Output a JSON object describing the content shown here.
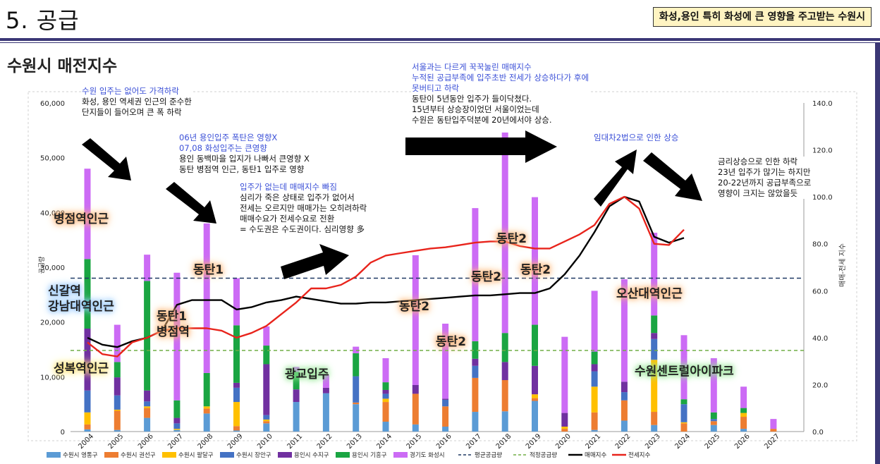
{
  "header": {
    "title": "5. 공급",
    "note": "화성,용인 특히 화성에 큰 영향을 주고받는 수원시"
  },
  "colors": {
    "accent": "#3b3776",
    "note_bg": "#fff4c2",
    "annotation_blue": "#3a4fd7",
    "series": [
      "#5b9bd5",
      "#ed7d31",
      "#ffc000",
      "#4472c4",
      "#7030a0",
      "#1aa542",
      "#cc6bf5"
    ],
    "avg_supply_line": "#1f3864",
    "proper_supply_line": "#70ad47",
    "sale_index_line": "#000000",
    "jeonse_index_line": "#e8241c"
  },
  "chart_data": {
    "type": "bar",
    "title": "수원시 매전지수",
    "stacked": true,
    "ylabel": "공급량",
    "y2label": "매매-전세 지수",
    "ylim": [
      0,
      60000
    ],
    "y2lim": [
      0,
      140
    ],
    "yticks": [
      "0",
      "10,000",
      "20,000",
      "30,000",
      "40,000",
      "50,000",
      "60,000"
    ],
    "y2ticks": [
      "0.0",
      "20.0",
      "40.0",
      "60.0",
      "80.0",
      "100.0",
      "120.0",
      "140.0"
    ],
    "grid": false,
    "legend_position": "bottom",
    "categories": [
      "2004",
      "2005",
      "2006",
      "2007",
      "2008",
      "2009",
      "2010",
      "2011",
      "2012",
      "2013",
      "2014",
      "2015",
      "2016",
      "2017",
      "2018",
      "2019",
      "2020",
      "2021",
      "2022",
      "2023",
      "2024",
      "2025",
      "2026",
      "2027"
    ],
    "series": [
      {
        "name": "수원시 영통구",
        "values": [
          400,
          300,
          2500,
          300,
          3300,
          200,
          1500,
          5400,
          7000,
          5000,
          1800,
          1300,
          900,
          3600,
          3700,
          5600,
          0,
          300,
          2000,
          1200,
          0,
          1200,
          500,
          0
        ]
      },
      {
        "name": "수원시 권선구",
        "values": [
          900,
          3500,
          1800,
          0,
          900,
          800,
          400,
          0,
          0,
          300,
          3600,
          5600,
          3700,
          6200,
          5700,
          500,
          500,
          3200,
          3700,
          2400,
          1500,
          700,
          2200,
          500
        ]
      },
      {
        "name": "수원시 팔달구",
        "values": [
          2200,
          200,
          300,
          200,
          400,
          4400,
          300,
          0,
          0,
          0,
          600,
          0,
          0,
          0,
          0,
          700,
          400,
          4700,
          0,
          9500,
          200,
          0,
          700,
          0
        ]
      },
      {
        "name": "수원시 장안구",
        "values": [
          4000,
          2600,
          900,
          1000,
          0,
          2600,
          800,
          0,
          0,
          4800,
          900,
          0,
          1200,
          2200,
          0,
          0,
          0,
          2800,
          1500,
          3800,
          3300,
          400,
          0,
          0
        ]
      },
      {
        "name": "용인시 수지구",
        "values": [
          11300,
          3300,
          2000,
          1000,
          0,
          900,
          9300,
          2300,
          1000,
          0,
          700,
          1600,
          200,
          1300,
          3300,
          5200,
          2500,
          1300,
          1900,
          1100,
          0,
          0,
          0,
          0
        ]
      },
      {
        "name": "용인시 기흥구",
        "values": [
          12700,
          2800,
          20000,
          3200,
          6100,
          10500,
          3400,
          3200,
          0,
          4200,
          1400,
          0,
          0,
          3200,
          5300,
          7500,
          0,
          2300,
          0,
          3200,
          900,
          1200,
          900,
          0
        ]
      },
      {
        "name": "경기도 화성시",
        "values": [
          16500,
          6800,
          4800,
          23300,
          27300,
          8600,
          3500,
          900,
          2400,
          1200,
          4400,
          23700,
          13700,
          24300,
          36600,
          23300,
          13900,
          11100,
          18700,
          15100,
          11700,
          9900,
          3900,
          1800
        ]
      }
    ],
    "reference_lines": [
      {
        "name": "평균공급량",
        "value": 28000
      },
      {
        "name": "적정공급량",
        "value": 14800
      }
    ],
    "index_series": [
      {
        "name": "매매지수",
        "axis": "secondary",
        "x": [
          2004.0,
          2004.5,
          2005.0,
          2005.5,
          2006.0,
          2006.5,
          2007.0,
          2007.5,
          2008.0,
          2008.5,
          2009.0,
          2009.5,
          2010.0,
          2010.5,
          2011.0,
          2011.5,
          2012.0,
          2012.5,
          2013.0,
          2013.5,
          2014.0,
          2014.5,
          2015.0,
          2015.5,
          2016.0,
          2016.5,
          2017.0,
          2017.5,
          2018.0,
          2018.5,
          2019.0,
          2019.5,
          2020.0,
          2020.5,
          2021.0,
          2021.5,
          2022.0,
          2022.5,
          2023.0,
          2023.5,
          2024.0
        ],
        "values": [
          40,
          37,
          36,
          38.5,
          40,
          43,
          54,
          56,
          56,
          56,
          52,
          53,
          55,
          56,
          57.5,
          56.5,
          55.5,
          54.5,
          54.5,
          55,
          55,
          55.5,
          56,
          56.5,
          57,
          57.5,
          58,
          58,
          58.5,
          59,
          59,
          61,
          67,
          75,
          85,
          96,
          100,
          98,
          83,
          80.5,
          82.5
        ]
      },
      {
        "name": "전세지수",
        "axis": "secondary",
        "x": [
          2004.0,
          2004.5,
          2005.0,
          2005.5,
          2006.0,
          2006.5,
          2007.0,
          2007.5,
          2008.0,
          2008.5,
          2009.0,
          2009.5,
          2010.0,
          2010.5,
          2011.0,
          2011.5,
          2012.0,
          2012.5,
          2013.0,
          2013.5,
          2014.0,
          2014.5,
          2015.0,
          2015.5,
          2016.0,
          2016.5,
          2017.0,
          2017.5,
          2018.0,
          2018.5,
          2019.0,
          2019.5,
          2020.0,
          2020.5,
          2021.0,
          2021.5,
          2022.0,
          2022.5,
          2023.0,
          2023.5,
          2024.0
        ],
        "values": [
          38,
          33,
          32,
          38,
          40,
          43,
          44,
          44,
          44,
          43,
          40,
          42,
          45,
          50,
          55,
          61,
          61,
          62.5,
          66,
          72,
          75,
          76,
          77,
          78,
          78.5,
          79.5,
          80.5,
          81,
          81,
          79,
          78,
          78,
          81,
          84,
          88,
          97,
          100,
          95,
          80,
          79.5,
          86
        ]
      }
    ],
    "legend": [
      "수원시 영통구",
      "수원시 권선구",
      "수원시 팔달구",
      "수원시 장안구",
      "용인시 수지구",
      "용인시 기흥구",
      "경기도 화성시",
      "평균공급량",
      "적정공급량",
      "매매지수",
      "전세지수"
    ]
  },
  "annotations": {
    "a1": [
      "수원 입주는 없어도 가격하락",
      "화성, 용인 역세권 인근의 준수한",
      "단지들이 들어오며 큰 폭 하락"
    ],
    "a2": [
      "06년 용인입주 폭탄은 영향X",
      "07,08 화성입주는 큰영향",
      "용인 동백마을 입지가 나빠서 큰영향 X",
      "동탄 병점역 인근, 동탄1 입주로 영향"
    ],
    "a3": [
      "입주가 없는데 매매지수 빠짐",
      "심리가 죽은 상태로 입주가 없어서",
      "전세는 오르지만 매매가는 오히려하락",
      "매매수요가 전세수요로 전환",
      "= 수도권은 수도권이다. 심리영향 多"
    ],
    "a4": [
      "서울과는 다르게 꾹꾹눌린 매매지수",
      "누적된 공급부족에 입주초반 전세가 상승하다가 후에",
      "못버티고 하락",
      "동탄이 5년동안 입주가 들이닥쳤다.",
      "15년부터 상승장이었던 서울이었는데",
      "수원은 동탄입주덕분에 20년에서야 상승."
    ],
    "a5": "임대차2법으로 인한 상승",
    "a6": [
      "금리상승으로 인한 하락",
      "23년 입주가 많기는 하지만",
      "20-22년까지 공급부족으로",
      "영향이 크지는 않았을듯"
    ]
  },
  "labels": {
    "byeongjeom": "병점역인근",
    "sinkal": "신갈역",
    "gangnam": "강남대역인근",
    "dongtan1_a": "동탄1",
    "dongtan1_b": "동탄1",
    "byeongjeom_stn": "병점역",
    "seongbok": "성복역인근",
    "gwanggyo": "광교입주",
    "dongtan2_a": "동탄2",
    "dongtan2_b": "동탄2",
    "dongtan2_c": "동탄2",
    "dongtan2_d": "동탄2",
    "dongtan2_e": "동탄2",
    "osan": "오산대역인근",
    "central": "수원센트럴아이파크"
  }
}
